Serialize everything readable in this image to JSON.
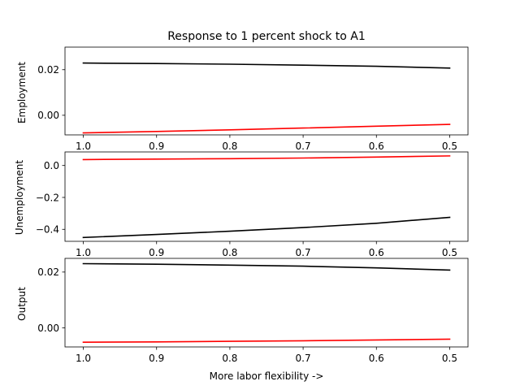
{
  "chart_data": {
    "type": "line",
    "title": "Response to 1 percent shock to A1",
    "xlabel": "More labor flexibility ->",
    "x": [
      1.0,
      0.9,
      0.8,
      0.7,
      0.6,
      0.5
    ],
    "xlim": [
      1.025,
      0.475
    ],
    "x_reversed": true,
    "xticks": [
      "1.0",
      "0.9",
      "0.8",
      "0.7",
      "0.6",
      "0.5"
    ],
    "grid": false,
    "legend": "none",
    "panels": [
      {
        "ylabel": "Employment",
        "ylim": [
          -0.0086,
          0.0299
        ],
        "yticks": [
          {
            "value": 0.02,
            "label": "0.02"
          },
          {
            "value": 0.0,
            "label": "0.00"
          }
        ],
        "series": [
          {
            "color": "#000000",
            "values": [
              0.0229,
              0.0227,
              0.0224,
              0.022,
              0.0215,
              0.0207
            ]
          },
          {
            "color": "#ff0000",
            "values": [
              -0.0077,
              -0.0071,
              -0.0064,
              -0.0056,
              -0.0048,
              -0.004
            ]
          }
        ]
      },
      {
        "ylabel": "Unemployment",
        "ylim": [
          -0.475,
          0.085
        ],
        "yticks": [
          {
            "value": 0.0,
            "label": "0.0"
          },
          {
            "value": -0.2,
            "label": "−0.2"
          },
          {
            "value": -0.4,
            "label": "−0.4"
          }
        ],
        "series": [
          {
            "color": "#000000",
            "values": [
              -0.451,
              -0.432,
              -0.412,
              -0.389,
              -0.362,
              -0.325
            ]
          },
          {
            "color": "#ff0000",
            "values": [
              0.037,
              0.04,
              0.043,
              0.047,
              0.053,
              0.06
            ]
          }
        ]
      },
      {
        "ylabel": "Output",
        "ylim": [
          -0.0068,
          0.0249
        ],
        "yticks": [
          {
            "value": 0.02,
            "label": "0.02"
          },
          {
            "value": 0.0,
            "label": "0.00"
          }
        ],
        "series": [
          {
            "color": "#000000",
            "values": [
              0.023,
              0.0228,
              0.0225,
              0.0221,
              0.0215,
              0.0207
            ]
          },
          {
            "color": "#ff0000",
            "values": [
              -0.0051,
              -0.005,
              -0.0048,
              -0.0046,
              -0.0043,
              -0.004
            ]
          }
        ]
      }
    ]
  }
}
